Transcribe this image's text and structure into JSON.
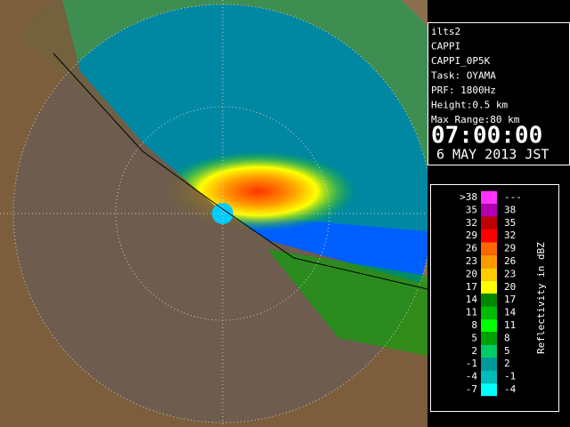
{
  "info": {
    "lines": [
      "ilts2",
      "CAPPI",
      "CAPPI_0P5K",
      "Task: OYAMA",
      "PRF: 1800Hz",
      "Height:0.5 km",
      "Max Range:80 km"
    ],
    "time": "07:00:00",
    "date": "6 MAY 2013 JST"
  },
  "legend": {
    "label": "Reflectivity in dBZ",
    "rows": [
      {
        "low": ">38",
        "high": "---",
        "color": "#ff33ff"
      },
      {
        "low": "35",
        "high": "38",
        "color": "#b000b0"
      },
      {
        "low": "32",
        "high": "35",
        "color": "#c00000"
      },
      {
        "low": "29",
        "high": "32",
        "color": "#ff0000"
      },
      {
        "low": "26",
        "high": "29",
        "color": "#ff6600"
      },
      {
        "low": "23",
        "high": "26",
        "color": "#ff9900"
      },
      {
        "low": "20",
        "high": "23",
        "color": "#ffcc00"
      },
      {
        "low": "17",
        "high": "20",
        "color": "#ffff00"
      },
      {
        "low": "14",
        "high": "17",
        "color": "#008800"
      },
      {
        "low": "11",
        "high": "14",
        "color": "#00bb00"
      },
      {
        "low": "8",
        "high": "11",
        "color": "#00ff00"
      },
      {
        "low": "5",
        "high": "8",
        "color": "#00a000"
      },
      {
        "low": "2",
        "high": "5",
        "color": "#00cc66"
      },
      {
        "low": "-1",
        "high": "2",
        "color": "#009999"
      },
      {
        "low": "-4",
        "high": "-1",
        "color": "#00bbbb"
      },
      {
        "low": "-7",
        "high": "-4",
        "color": "#00ffff"
      }
    ]
  }
}
